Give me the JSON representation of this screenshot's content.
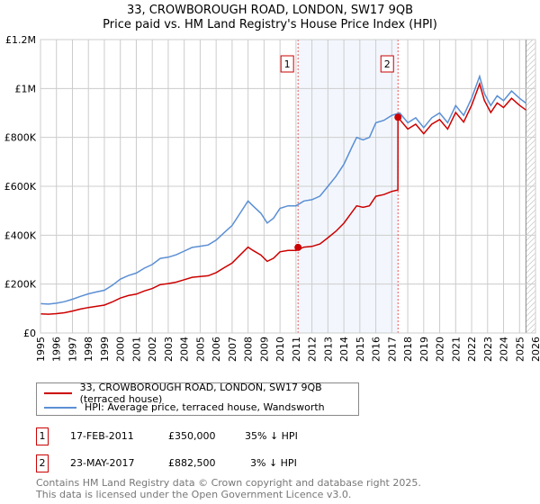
{
  "chart_data": {
    "type": "line",
    "title": "33, CROWBOROUGH ROAD, LONDON, SW17 9QB",
    "subtitle": "Price paid vs. HM Land Registry's House Price Index (HPI)",
    "xlim": [
      1995,
      2026
    ],
    "ylim": [
      0,
      1200000
    ],
    "grid": true,
    "x_ticks": [
      "1995",
      "1996",
      "1997",
      "1998",
      "1999",
      "2000",
      "2001",
      "2002",
      "2003",
      "2004",
      "2005",
      "2006",
      "2007",
      "2008",
      "2009",
      "2010",
      "2011",
      "2012",
      "2013",
      "2014",
      "2015",
      "2016",
      "2017",
      "2018",
      "2019",
      "2020",
      "2021",
      "2022",
      "2023",
      "2024",
      "2025",
      "2026"
    ],
    "y_ticks": [
      {
        "v": 0,
        "label": "£0"
      },
      {
        "v": 200000,
        "label": "£200K"
      },
      {
        "v": 400000,
        "label": "£400K"
      },
      {
        "v": 600000,
        "label": "£600K"
      },
      {
        "v": 800000,
        "label": "£800K"
      },
      {
        "v": 1000000,
        "label": "£1M"
      },
      {
        "v": 1200000,
        "label": "£1.2M"
      }
    ],
    "series": [
      {
        "name": "33, CROWBOROUGH ROAD, LONDON, SW17 9QB (terraced house)",
        "color": "#cc0000",
        "x": [
          1995,
          1995.5,
          1996,
          1996.5,
          1997,
          1997.5,
          1998,
          1998.5,
          1999,
          1999.5,
          2000,
          2000.5,
          2001,
          2001.5,
          2002,
          2002.5,
          2003,
          2003.5,
          2004,
          2004.5,
          2005,
          2005.5,
          2006,
          2006.5,
          2007,
          2007.5,
          2008,
          2008.3,
          2008.8,
          2009.2,
          2009.6,
          2010,
          2010.5,
          2011,
          2011.5,
          2012,
          2012.5,
          2013,
          2013.5,
          2014,
          2014.5,
          2014.8,
          2015.2,
          2015.6,
          2016,
          2016.5,
          2017,
          2017.38,
          2017.39,
          2017.5,
          2018,
          2018.5,
          2019,
          2019.5,
          2020,
          2020.5,
          2021,
          2021.5,
          2022,
          2022.5,
          2022.8,
          2023.2,
          2023.6,
          2024,
          2024.5,
          2025,
          2025.4
        ],
        "y": [
          78,
          77,
          79,
          83,
          90,
          98,
          104,
          109,
          114,
          127,
          143,
          153,
          159,
          172,
          182,
          198,
          202,
          208,
          218,
          228,
          231,
          234,
          247,
          267,
          286,
          319,
          351,
          338,
          319,
          293,
          306,
          332,
          338,
          338,
          351,
          354,
          364,
          390,
          416,
          449,
          494,
          520,
          514,
          520,
          559,
          566,
          579,
          585,
          882.5,
          873,
          834,
          854,
          815,
          854,
          873,
          834,
          902,
          863,
          931,
          1019,
          951,
          902,
          941,
          922,
          960,
          931,
          912
        ],
        "y_unit": "thousands GBP"
      },
      {
        "name": "HPI: Average price, terraced house, Wandsworth",
        "color": "#5b8fd4",
        "x": [
          1995,
          1995.5,
          1996,
          1996.5,
          1997,
          1997.5,
          1998,
          1998.5,
          1999,
          1999.5,
          2000,
          2000.5,
          2001,
          2001.5,
          2002,
          2002.5,
          2003,
          2003.5,
          2004,
          2004.5,
          2005,
          2005.5,
          2006,
          2006.5,
          2007,
          2007.5,
          2008,
          2008.3,
          2008.8,
          2009.2,
          2009.6,
          2010,
          2010.5,
          2011,
          2011.5,
          2012,
          2012.5,
          2013,
          2013.5,
          2014,
          2014.5,
          2014.8,
          2015.2,
          2015.6,
          2016,
          2016.5,
          2017,
          2017.5,
          2018,
          2018.5,
          2019,
          2019.5,
          2020,
          2020.5,
          2021,
          2021.5,
          2022,
          2022.5,
          2022.8,
          2023.2,
          2023.6,
          2024,
          2024.5,
          2025,
          2025.4
        ],
        "y": [
          120,
          118,
          122,
          128,
          138,
          150,
          160,
          168,
          175,
          195,
          220,
          235,
          245,
          265,
          280,
          305,
          310,
          320,
          335,
          350,
          355,
          360,
          380,
          410,
          440,
          490,
          540,
          520,
          490,
          450,
          470,
          510,
          520,
          520,
          540,
          545,
          560,
          600,
          640,
          690,
          760,
          800,
          790,
          800,
          860,
          870,
          890,
          900,
          860,
          880,
          840,
          880,
          900,
          860,
          930,
          890,
          960,
          1050,
          980,
          930,
          970,
          950,
          990,
          960,
          940
        ],
        "y_unit": "thousands GBP"
      }
    ],
    "sales": [
      {
        "label": "1",
        "x": 2011.13,
        "y": 350
      },
      {
        "label": "2",
        "x": 2017.39,
        "y": 882.5
      }
    ],
    "forecast_start": 2025.4
  },
  "legend": {
    "red": "33, CROWBOROUGH ROAD, LONDON, SW17 9QB (terraced house)",
    "blue": "HPI: Average price, terraced house, Wandsworth"
  },
  "transactions": [
    {
      "num": "1",
      "date": "17-FEB-2011",
      "price": "£350,000",
      "hpi": "35% ↓ HPI"
    },
    {
      "num": "2",
      "date": "23-MAY-2017",
      "price": "£882,500",
      "hpi": "3% ↓ HPI"
    }
  ],
  "footer": {
    "line1": "Contains HM Land Registry data © Crown copyright and database right 2025.",
    "line2": "This data is licensed under the Open Government Licence v3.0."
  }
}
